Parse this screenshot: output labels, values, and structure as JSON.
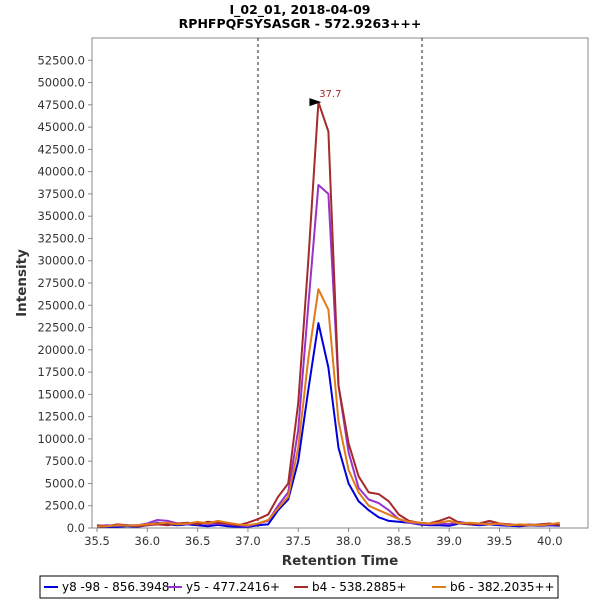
{
  "chart_data": {
    "type": "line",
    "title": "I_02_01, 2018-04-09",
    "subtitle": "RPHFPQFSYSASGR - 572.9263+++",
    "xlabel": "Retention Time",
    "ylabel": "Intensity",
    "xlim": [
      35.45,
      40.38
    ],
    "ylim": [
      0,
      55000
    ],
    "xticks": [
      35.5,
      36.0,
      36.5,
      37.0,
      37.5,
      38.0,
      38.5,
      39.0,
      39.5,
      40.0
    ],
    "xtick_labels": [
      "35.5",
      "36.0",
      "36.5",
      "37.0",
      "37.5",
      "38.0",
      "38.5",
      "39.0",
      "39.5",
      "40.0"
    ],
    "yticks": [
      0,
      2500,
      5000,
      7500,
      10000,
      12500,
      15000,
      17500,
      20000,
      22500,
      25000,
      27500,
      30000,
      32500,
      35000,
      37500,
      40000,
      42500,
      45000,
      47500,
      50000,
      52500
    ],
    "ytick_labels": [
      "0.0",
      "2500.0",
      "5000.0",
      "7500.0",
      "10000.0",
      "12500.0",
      "15000.0",
      "17500.0",
      "20000.0",
      "22500.0",
      "25000.0",
      "27500.0",
      "30000.0",
      "32500.0",
      "35000.0",
      "37500.0",
      "40000.0",
      "42500.0",
      "45000.0",
      "47500.0",
      "50000.0",
      "52500.0"
    ],
    "grid": false,
    "legend_position": "bottom",
    "boundaries": [
      37.1,
      38.73
    ],
    "peak_annotation": {
      "text": "37.7",
      "x": 37.75,
      "y": 47800,
      "color": "#a52a2a"
    },
    "series": [
      {
        "name": "y8 -98 - 856.3948+",
        "color": "#0000dd",
        "x": [
          35.5,
          35.6,
          35.7,
          35.8,
          35.9,
          36.0,
          36.1,
          36.2,
          36.3,
          36.4,
          36.5,
          36.6,
          36.7,
          36.8,
          36.9,
          37.0,
          37.1,
          37.2,
          37.3,
          37.4,
          37.5,
          37.6,
          37.7,
          37.8,
          37.9,
          38.0,
          38.1,
          38.2,
          38.3,
          38.4,
          38.5,
          38.6,
          38.7,
          38.8,
          38.9,
          39.0,
          39.1,
          39.2,
          39.3,
          39.4,
          39.5,
          39.6,
          39.7,
          39.8,
          39.9,
          40.0,
          40.1
        ],
        "values": [
          100,
          150,
          120,
          200,
          150,
          300,
          600,
          400,
          300,
          400,
          300,
          200,
          350,
          200,
          150,
          150,
          300,
          400,
          2000,
          3200,
          7500,
          15500,
          23000,
          18000,
          9000,
          5000,
          3000,
          2000,
          1200,
          800,
          700,
          600,
          400,
          300,
          300,
          250,
          500,
          400,
          300,
          400,
          300,
          250,
          200,
          300,
          250,
          300,
          250
        ]
      },
      {
        "name": "y5 - 477.2416+",
        "color": "#9932cc",
        "x": [
          35.5,
          35.6,
          35.7,
          35.8,
          35.9,
          36.0,
          36.1,
          36.2,
          36.3,
          36.4,
          36.5,
          36.6,
          36.7,
          36.8,
          36.9,
          37.0,
          37.1,
          37.2,
          37.3,
          37.4,
          37.5,
          37.6,
          37.7,
          37.8,
          37.9,
          38.0,
          38.1,
          38.2,
          38.3,
          38.4,
          38.5,
          38.6,
          38.7,
          38.8,
          38.9,
          39.0,
          39.1,
          39.2,
          39.3,
          39.4,
          39.5,
          39.6,
          39.7,
          39.8,
          39.9,
          40.0,
          40.1
        ],
        "values": [
          200,
          300,
          250,
          300,
          300,
          500,
          900,
          800,
          500,
          400,
          600,
          400,
          500,
          400,
          300,
          200,
          500,
          800,
          2500,
          4000,
          11000,
          25000,
          38500,
          37500,
          16000,
          8500,
          4500,
          3200,
          2800,
          2000,
          1000,
          600,
          500,
          400,
          500,
          450,
          700,
          500,
          400,
          500,
          400,
          350,
          300,
          400,
          300,
          400,
          350
        ]
      },
      {
        "name": "b4 - 538.2885+",
        "color": "#a52a2a",
        "x": [
          35.5,
          35.6,
          35.7,
          35.8,
          35.9,
          36.0,
          36.1,
          36.2,
          36.3,
          36.4,
          36.5,
          36.6,
          36.7,
          36.8,
          36.9,
          37.0,
          37.1,
          37.2,
          37.3,
          37.4,
          37.5,
          37.6,
          37.7,
          37.8,
          37.9,
          38.0,
          38.1,
          38.2,
          38.3,
          38.4,
          38.5,
          38.6,
          38.7,
          38.8,
          38.9,
          39.0,
          39.1,
          39.2,
          39.3,
          39.4,
          39.5,
          39.6,
          39.7,
          39.8,
          39.9,
          40.0,
          40.1
        ],
        "values": [
          300,
          200,
          400,
          300,
          200,
          300,
          400,
          300,
          500,
          600,
          400,
          700,
          600,
          500,
          300,
          600,
          1000,
          1500,
          3500,
          5000,
          14000,
          30000,
          47800,
          44500,
          16000,
          9500,
          5800,
          4000,
          3800,
          3000,
          1500,
          800,
          600,
          500,
          800,
          1200,
          600,
          400,
          500,
          800,
          500,
          400,
          300,
          300,
          400,
          500,
          300
        ]
      },
      {
        "name": "b6 - 382.2035++",
        "color": "#e07b1a",
        "x": [
          35.5,
          35.6,
          35.7,
          35.8,
          35.9,
          36.0,
          36.1,
          36.2,
          36.3,
          36.4,
          36.5,
          36.6,
          36.7,
          36.8,
          36.9,
          37.0,
          37.1,
          37.2,
          37.3,
          37.4,
          37.5,
          37.6,
          37.7,
          37.8,
          37.9,
          38.0,
          38.1,
          38.2,
          38.3,
          38.4,
          38.5,
          38.6,
          38.7,
          38.8,
          38.9,
          39.0,
          39.1,
          39.2,
          39.3,
          39.4,
          39.5,
          39.6,
          39.7,
          39.8,
          39.9,
          40.0,
          40.1
        ],
        "values": [
          150,
          200,
          300,
          250,
          300,
          400,
          500,
          600,
          400,
          500,
          700,
          500,
          800,
          600,
          400,
          300,
          500,
          900,
          2200,
          3500,
          9000,
          19000,
          26800,
          24500,
          12000,
          6500,
          4000,
          2500,
          2000,
          1500,
          1000,
          700,
          600,
          500,
          600,
          800,
          500,
          600,
          500,
          400,
          500,
          300,
          400,
          350,
          300,
          400,
          600
        ]
      }
    ]
  }
}
